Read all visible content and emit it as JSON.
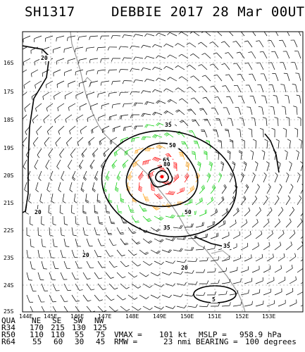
{
  "header": {
    "storm_id": "SH1317",
    "title": "DEBBIE 2017 28 Mar 00UTC"
  },
  "map": {
    "lat_labels": [
      "16S",
      "17S",
      "18S",
      "19S",
      "20S",
      "21S",
      "22S",
      "23S",
      "24S",
      "25S"
    ],
    "lon_labels": [
      "144E",
      "145E",
      "146E",
      "147E",
      "148E",
      "149E",
      "150E",
      "151E",
      "152E",
      "153E"
    ],
    "contour_labels": [
      "20",
      "20",
      "20",
      "20",
      "35",
      "35",
      "35",
      "50",
      "50",
      "65",
      "80",
      "5"
    ],
    "colors": {
      "low_wind": "#000000",
      "tropical_storm": "#00cc00",
      "gale": "#ff9900",
      "hurricane": "#ff0000",
      "coast": "#999999",
      "contour": "#000000"
    }
  },
  "wind_radii_table": {
    "headers": [
      "QUA",
      "NE",
      "SE",
      "SW",
      "NW"
    ],
    "rows": [
      {
        "label": "R34",
        "values": [
          "170",
          "215",
          "130",
          "125"
        ]
      },
      {
        "label": "R50",
        "values": [
          "110",
          "110",
          "55",
          "75"
        ]
      },
      {
        "label": "R64",
        "values": [
          "55",
          "60",
          "30",
          "45"
        ]
      }
    ]
  },
  "stats": {
    "vmax_label": "VMAX =",
    "vmax_value": "101 kt",
    "mslp_label": "MSLP =",
    "mslp_value": "958.9 hPa",
    "rmw_label": "RMW =",
    "rmw_value": "23 nmi",
    "bearing_label": "BEARING =",
    "bearing_value": "100 degrees"
  }
}
